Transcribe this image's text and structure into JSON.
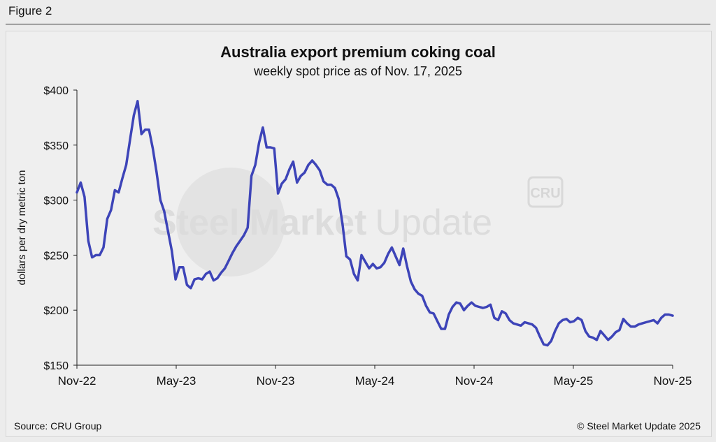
{
  "figure_label": "Figure 2",
  "source": "Source: CRU Group",
  "copyright": "© Steel Market Update 2025",
  "watermark": {
    "text_bold": "Steel Market",
    "text_light": "Update",
    "badge": "CRU"
  },
  "chart_data": {
    "type": "line",
    "title": "Australia export premium coking coal",
    "subtitle": "weekly spot price as of Nov. 17, 2025",
    "ylabel": "dollars per dry metric ton",
    "xlabel": "",
    "ylim": [
      150,
      400
    ],
    "yticks": [
      150,
      200,
      250,
      300,
      350,
      400
    ],
    "ytick_labels": [
      "$150",
      "$200",
      "$250",
      "$300",
      "$350",
      "$400"
    ],
    "xtick_labels": [
      "Nov-22",
      "May-23",
      "Nov-23",
      "May-24",
      "Nov-24",
      "May-25",
      "Nov-25"
    ],
    "line_color": "#3d44b8",
    "grid": false,
    "series": [
      {
        "values": [
          307,
          316,
          303,
          263,
          248,
          250,
          250,
          257,
          283,
          291,
          309,
          307,
          320,
          332,
          355,
          377,
          390,
          360,
          364,
          364,
          347,
          325,
          300,
          290,
          272,
          254,
          228,
          239,
          239,
          223,
          220,
          228,
          229,
          228,
          233,
          235,
          227,
          229,
          234,
          238,
          245,
          252,
          258,
          263,
          268,
          275,
          322,
          332,
          352,
          366,
          348,
          348,
          347,
          306,
          315,
          319,
          328,
          335,
          316,
          322,
          325,
          332,
          336,
          332,
          327,
          317,
          314,
          314,
          311,
          301,
          278,
          249,
          246,
          233,
          227,
          250,
          244,
          238,
          242,
          238,
          239,
          243,
          251,
          257,
          249,
          241,
          256,
          240,
          226,
          219,
          215,
          213,
          204,
          198,
          197,
          190,
          183,
          183,
          196,
          203,
          207,
          206,
          200,
          204,
          207,
          204,
          203,
          202,
          203,
          205,
          193,
          191,
          199,
          197,
          191,
          188,
          187,
          186,
          189,
          188,
          187,
          184,
          176,
          169,
          168,
          172,
          181,
          188,
          191,
          192,
          189,
          190,
          193,
          191,
          181,
          176,
          175,
          173,
          181,
          177,
          173,
          176,
          180,
          182,
          192,
          188,
          185,
          185,
          187,
          188,
          189,
          190,
          191,
          188,
          193,
          196,
          196,
          195
        ]
      }
    ]
  }
}
